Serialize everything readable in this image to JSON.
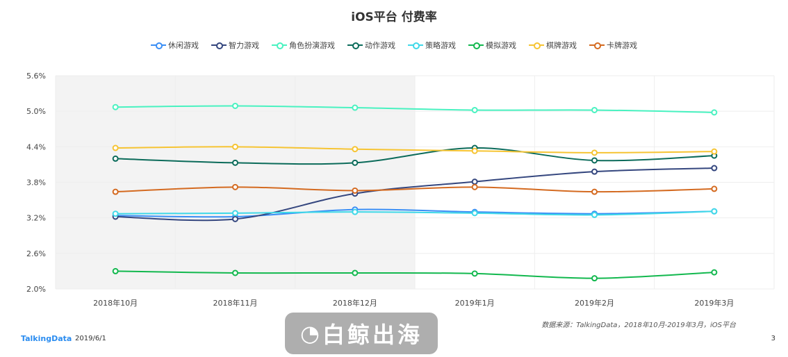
{
  "chart_data": {
    "type": "line",
    "title": "iOS平台  付费率",
    "categories": [
      "2018年10月",
      "2018年11月",
      "2018年12月",
      "2019年1月",
      "2019年2月",
      "2019年3月"
    ],
    "ylim": [
      2.0,
      5.6
    ],
    "yticks": [
      "2.0%",
      "2.6%",
      "3.2%",
      "3.8%",
      "4.4%",
      "5.0%",
      "5.6%"
    ],
    "grid": true,
    "legend_position": "top",
    "shaded_categories": [
      "2018年10月",
      "2018年11月",
      "2018年12月"
    ],
    "series": [
      {
        "name": "休闲游戏",
        "color": "#3a8ef5",
        "values": [
          3.24,
          3.22,
          3.34,
          3.3,
          3.27,
          3.31
        ]
      },
      {
        "name": "智力游戏",
        "color": "#34467e",
        "values": [
          3.22,
          3.18,
          3.61,
          3.81,
          3.98,
          4.04
        ]
      },
      {
        "name": "角色扮演游戏",
        "color": "#48f2c0",
        "values": [
          5.07,
          5.09,
          5.06,
          5.02,
          5.02,
          4.98
        ]
      },
      {
        "name": "动作游戏",
        "color": "#0b6b5a",
        "values": [
          4.2,
          4.13,
          4.13,
          4.38,
          4.17,
          4.25
        ]
      },
      {
        "name": "策略游戏",
        "color": "#3fd8e8",
        "values": [
          3.27,
          3.28,
          3.3,
          3.28,
          3.25,
          3.31
        ]
      },
      {
        "name": "模拟游戏",
        "color": "#12b84e",
        "values": [
          2.3,
          2.27,
          2.27,
          2.26,
          2.18,
          2.28
        ]
      },
      {
        "name": "棋牌游戏",
        "color": "#f6c433",
        "values": [
          4.38,
          4.4,
          4.36,
          4.33,
          4.3,
          4.32
        ]
      },
      {
        "name": "卡牌游戏",
        "color": "#d46a20",
        "values": [
          3.64,
          3.72,
          3.66,
          3.72,
          3.64,
          3.69
        ]
      }
    ]
  },
  "footer": {
    "source": "数据来源：TalkingData，2018年10月-2019年3月，iOS平台",
    "brand": "TalkingData",
    "date": "2019/6/1",
    "page": "3"
  },
  "watermark": "白鲸出海"
}
